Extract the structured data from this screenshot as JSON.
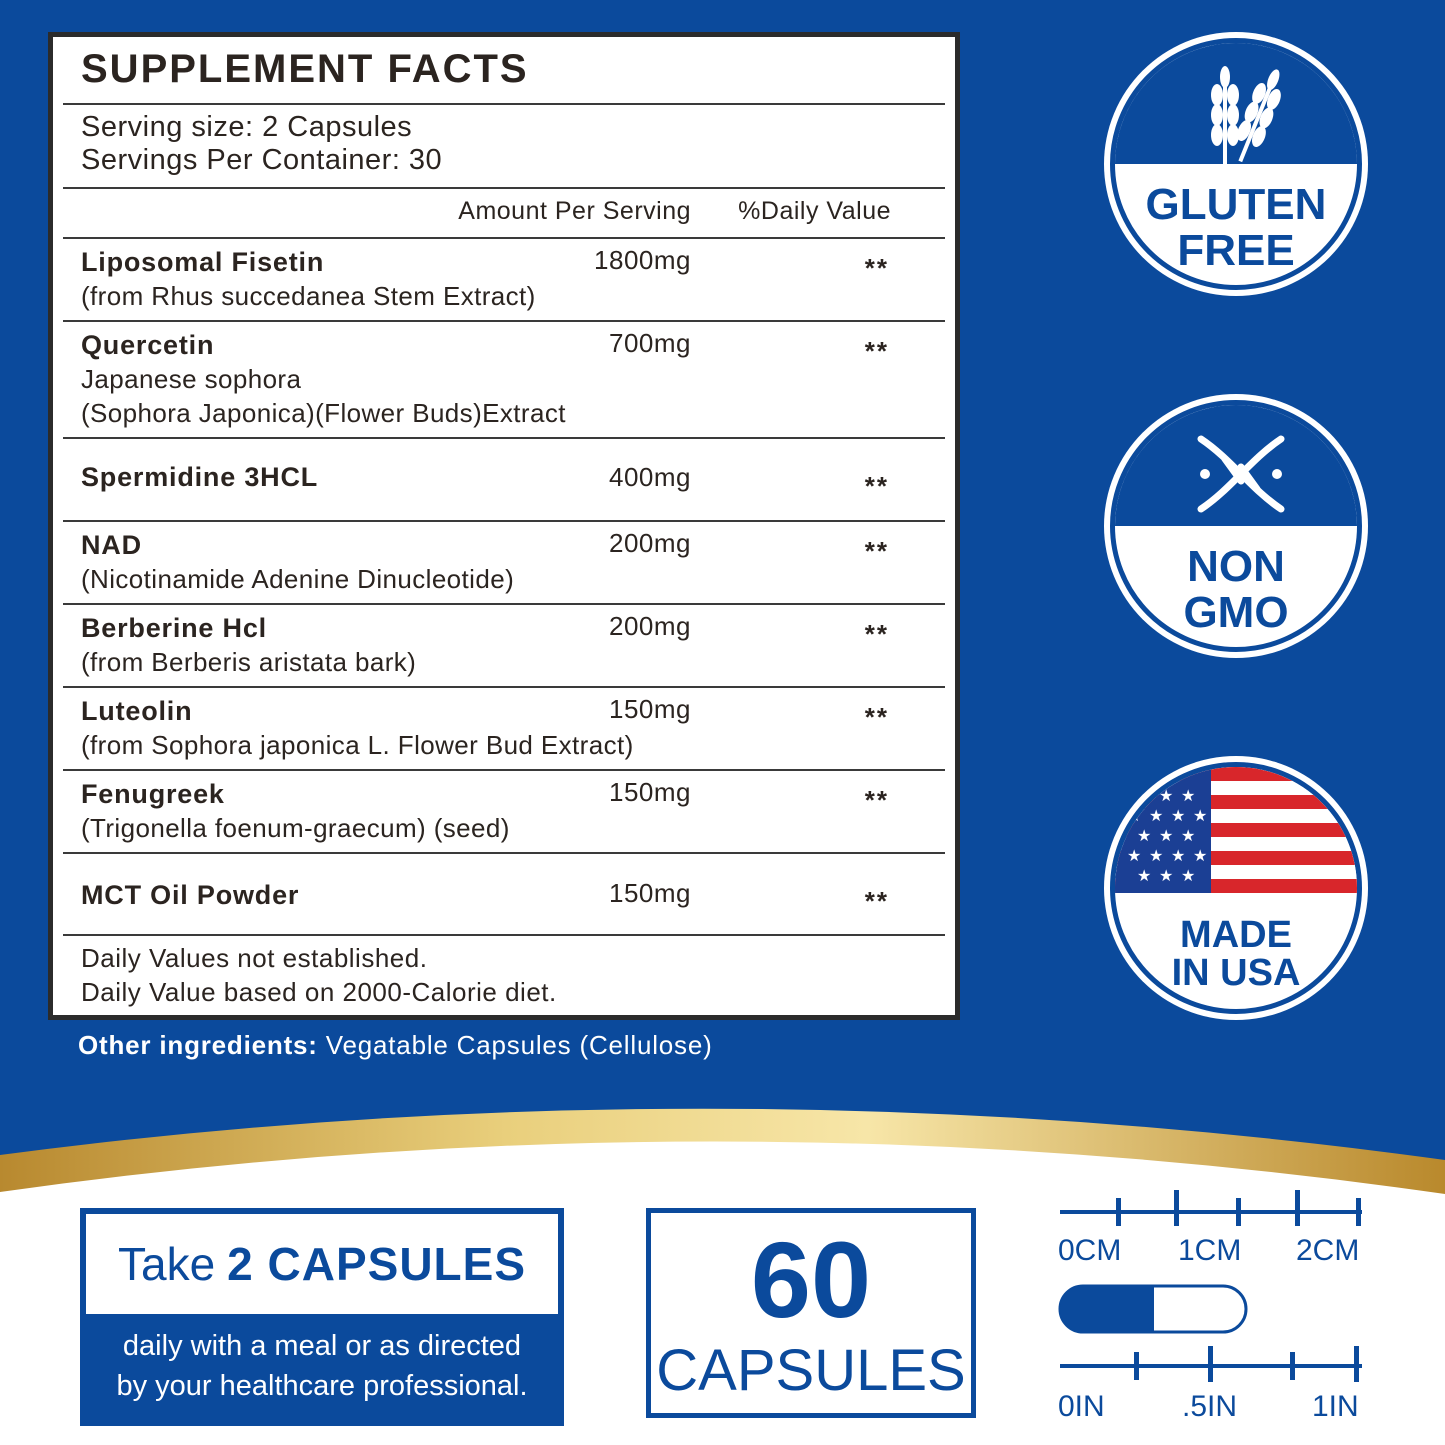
{
  "facts": {
    "title": "SUPPLEMENT FACTS",
    "serving_size": "Serving size: 2 Capsules",
    "servings_per_container": "Servings Per Container: 30",
    "col_amount": "Amount Per Serving",
    "col_dv": "%Daily Value",
    "ingredients": [
      {
        "name": "Liposomal Fisetin",
        "sub": "(from Rhus succedanea Stem Extract)",
        "amount": "1800mg",
        "dv": "**"
      },
      {
        "name": "Quercetin",
        "sub": "Japanese sophora",
        "sub2": "(Sophora Japonica)(Flower Buds)Extract",
        "amount": "700mg",
        "dv": "**"
      },
      {
        "name": "Spermidine 3HCL",
        "amount": "400mg",
        "dv": "**"
      },
      {
        "name": "NAD",
        "sub": "(Nicotinamide Adenine Dinucleotide)",
        "amount": "200mg",
        "dv": "**"
      },
      {
        "name": "Berberine Hcl",
        "sub": "(from Berberis aristata bark)",
        "amount": "200mg",
        "dv": "**"
      },
      {
        "name": "Luteolin",
        "sub": "(from Sophora japonica L. Flower Bud Extract)",
        "amount": "150mg",
        "dv": "**"
      },
      {
        "name": "Fenugreek",
        "sub": "(Trigonella foenum-graecum) (seed)",
        "amount": "150mg",
        "dv": "**"
      },
      {
        "name": "MCT Oil Powder",
        "amount": "150mg",
        "dv": "**"
      }
    ],
    "footnote1": "Daily Values not established.",
    "footnote2": "Daily Value based on 2000-Calorie diet."
  },
  "other_ingredients": {
    "label": "Other ingredients:",
    "value": "Vegatable Capsules (Cellulose)"
  },
  "badges": {
    "gluten": {
      "line1": "GLUTEN",
      "line2": "FREE",
      "icon": "wheat-icon"
    },
    "gmo": {
      "line1": "NON",
      "line2": "GMO",
      "icon": "dna-icon"
    },
    "usa": {
      "line1": "MADE",
      "line2": "IN USA",
      "icon": "us-flag-icon"
    }
  },
  "dosage": {
    "take": "Take",
    "amount": "2 CAPSULES",
    "line1": "daily with a meal or as directed",
    "line2": "by your healthcare professional."
  },
  "count": {
    "number": "60",
    "label": "CAPSULES"
  },
  "scale": {
    "cm": [
      "0CM",
      "1CM",
      "2CM"
    ],
    "inch": [
      "0IN",
      ".5IN",
      "1IN"
    ]
  },
  "colors": {
    "brand_blue": "#0b4a9c",
    "gold": "#c9a24a",
    "flag_red": "#d8262b"
  }
}
